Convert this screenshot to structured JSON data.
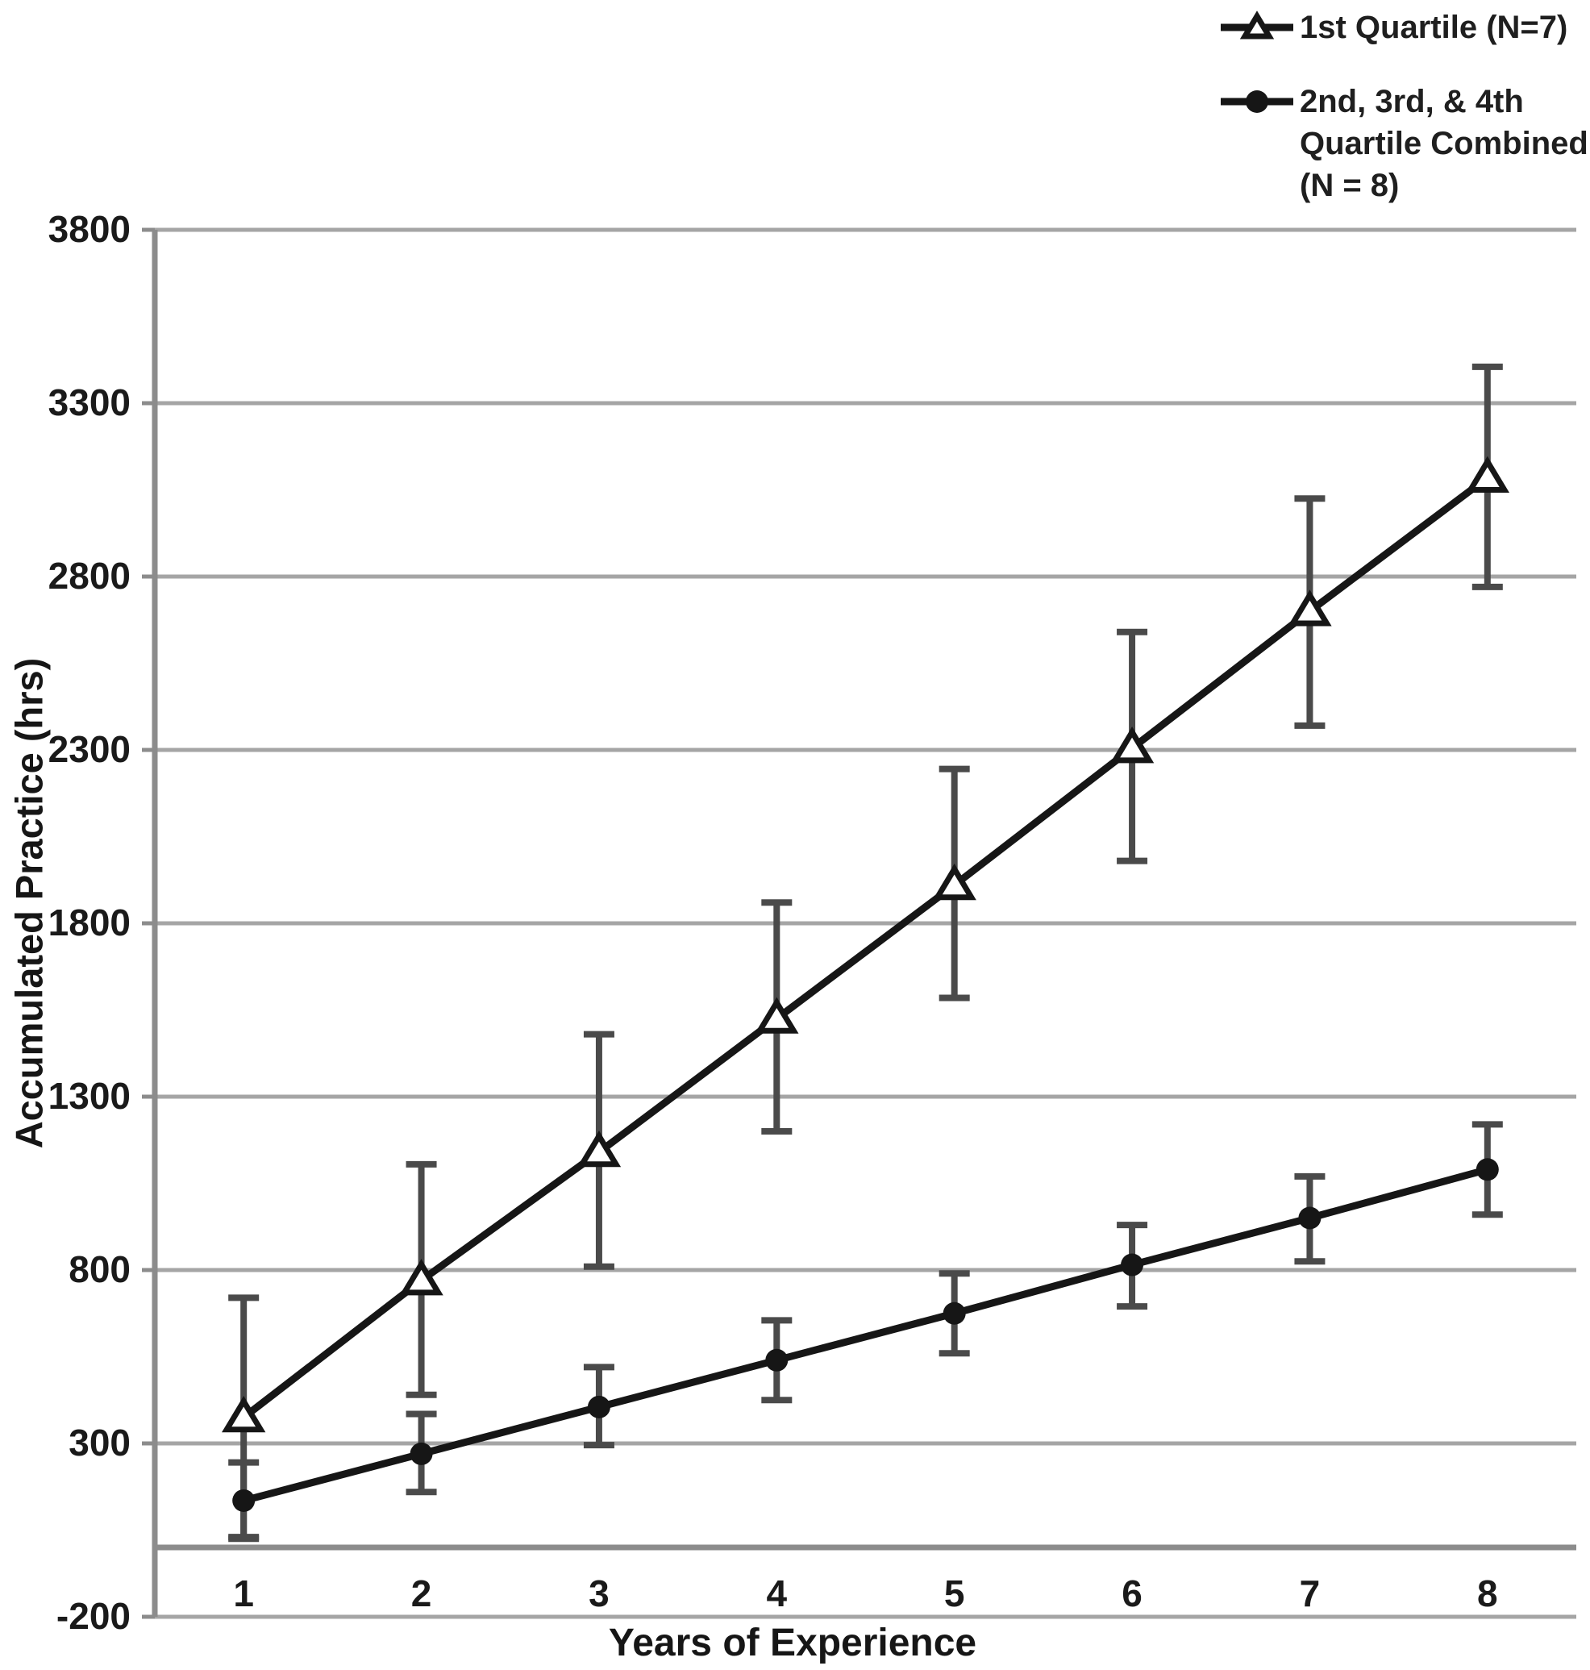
{
  "legend": {
    "items": [
      {
        "id": "first-quartile",
        "marker": "open-triangle",
        "label_lines": [
          "1st Quartile (N=7)"
        ]
      },
      {
        "id": "combined-quartiles",
        "marker": "filled-circle",
        "label_lines": [
          "2nd, 3rd, & 4th",
          "Quartile Combined",
          "(N = 8)"
        ]
      }
    ]
  },
  "axes": {
    "x_title": "Years of Experience",
    "y_title": "Accumulated Practice (hrs)",
    "x_tick_labels": [
      "1",
      "2",
      "3",
      "4",
      "5",
      "6",
      "7",
      "8"
    ],
    "y_tick_labels": [
      "-200",
      "300",
      "800",
      "1300",
      "1800",
      "2300",
      "2800",
      "3300",
      "3800"
    ],
    "y_ticks": [
      -200,
      300,
      800,
      1300,
      1800,
      2300,
      2800,
      3300,
      3800
    ],
    "zero_line_value": 0
  },
  "chart_data": {
    "type": "line",
    "x": [
      1,
      2,
      3,
      4,
      5,
      6,
      7,
      8
    ],
    "xlabel": "Years of Experience",
    "ylabel": "Accumulated Practice (hrs)",
    "ylim": [
      -200,
      3800
    ],
    "y_tick_step": 500,
    "grid": true,
    "legend_position": "top-right",
    "series": [
      {
        "name": "1st Quartile (N=7)",
        "marker": "open-triangle",
        "values": [
          375,
          770,
          1140,
          1525,
          1910,
          2305,
          2700,
          3085
        ],
        "error_low": [
          30,
          440,
          810,
          1200,
          1585,
          1980,
          2370,
          2770
        ],
        "error_high": [
          720,
          1105,
          1480,
          1860,
          2245,
          2640,
          3025,
          3405
        ]
      },
      {
        "name": "2nd, 3rd, & 4th Quartile Combined (N = 8)",
        "marker": "filled-circle",
        "values": [
          135,
          270,
          405,
          540,
          675,
          815,
          950,
          1090
        ],
        "error_low": [
          25,
          160,
          295,
          425,
          560,
          695,
          825,
          960
        ],
        "error_high": [
          245,
          385,
          520,
          655,
          790,
          930,
          1070,
          1220
        ]
      }
    ]
  },
  "colors": {
    "series_line": "#161616",
    "marker_fill": "#161616",
    "error_bar": "#4a4a4a",
    "gridline": "#a5a5a5",
    "axis_line": "#8c8c8c",
    "tick_text": "#1a1a1a",
    "background": "#ffffff"
  }
}
